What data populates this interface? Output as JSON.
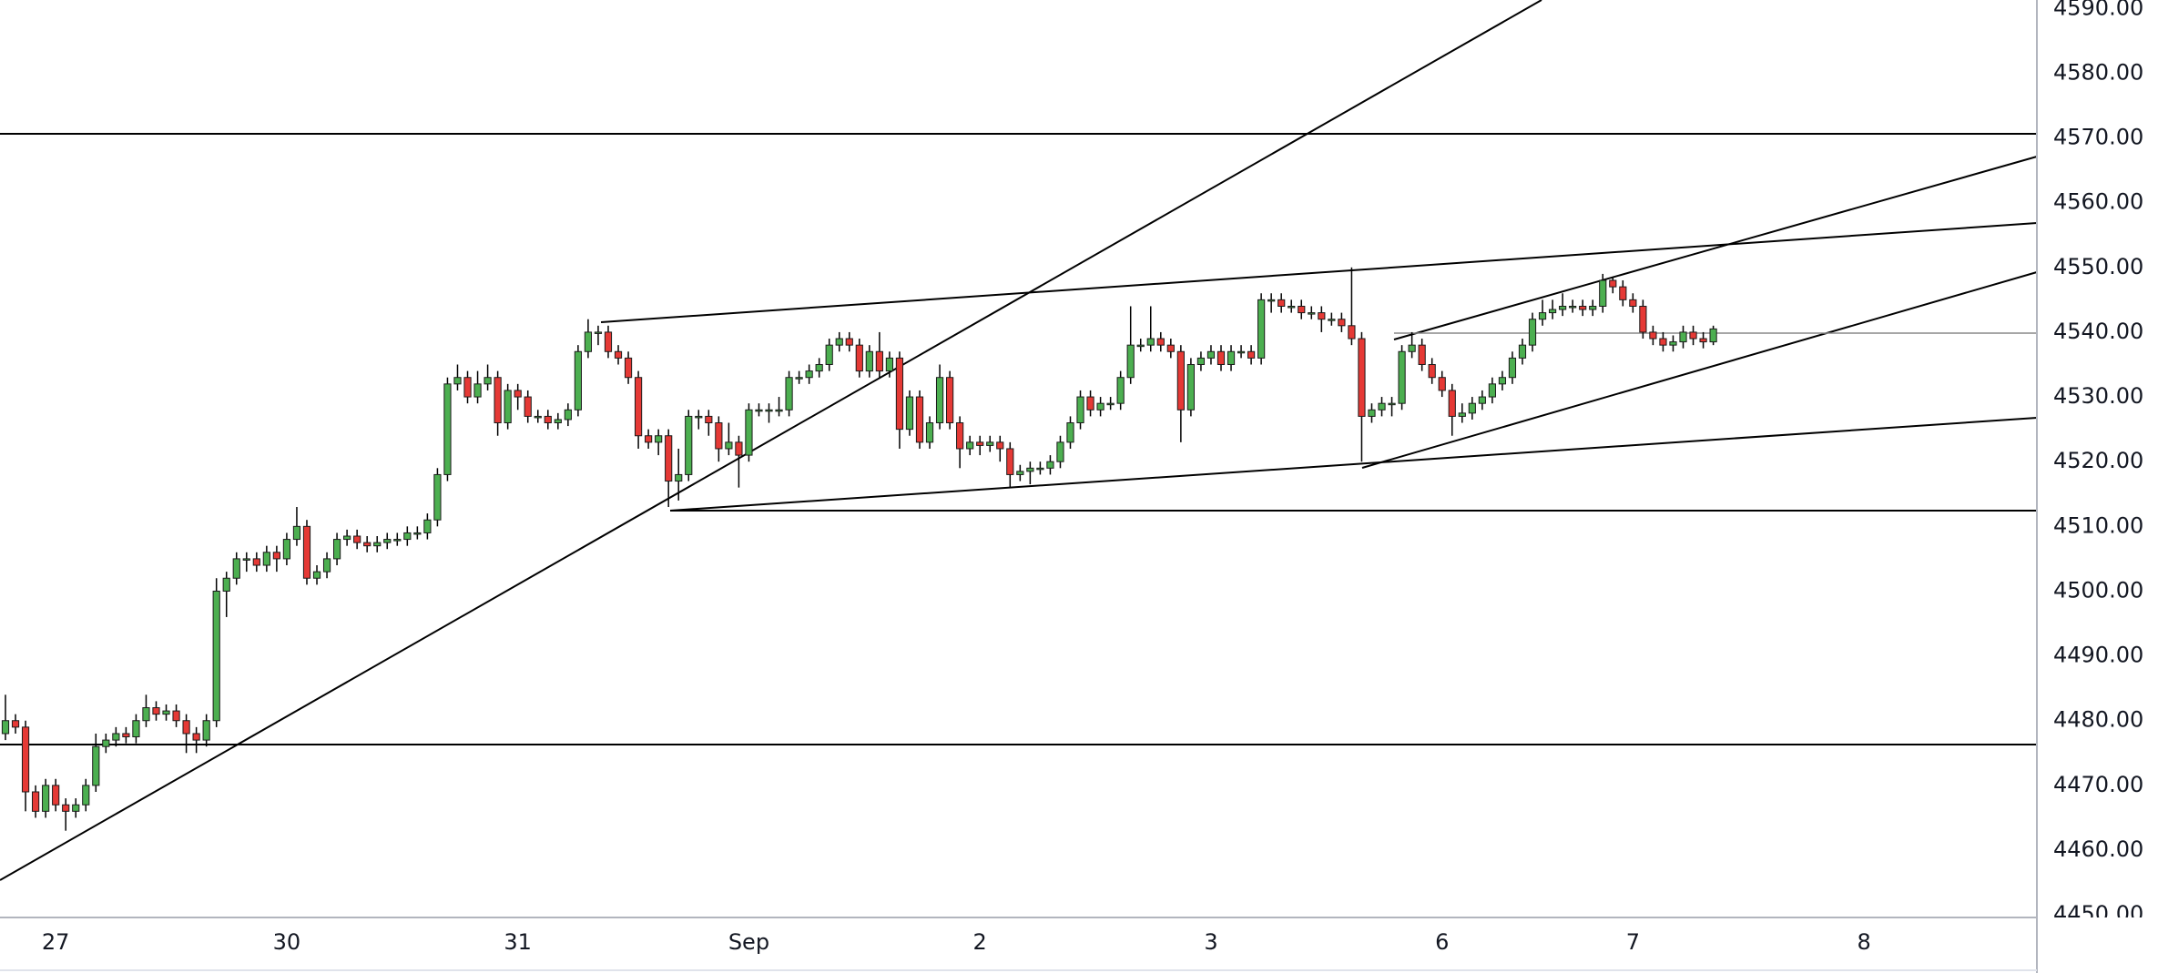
{
  "chart_data": {
    "type": "candlestick",
    "up_color": "#4caf50",
    "down_color": "#e53935",
    "ylim": [
      4449.6,
      4591.3
    ],
    "yticks": [
      {
        "value": 4450,
        "label": "4450.00"
      },
      {
        "value": 4460,
        "label": "4460.00"
      },
      {
        "value": 4470,
        "label": "4470.00"
      },
      {
        "value": 4480,
        "label": "4480.00"
      },
      {
        "value": 4490,
        "label": "4490.00"
      },
      {
        "value": 4500,
        "label": "4500.00"
      },
      {
        "value": 4510,
        "label": "4510.00"
      },
      {
        "value": 4520,
        "label": "4520.00"
      },
      {
        "value": 4530,
        "label": "4530.00"
      },
      {
        "value": 4540,
        "label": "4540.00"
      },
      {
        "value": 4550,
        "label": "4550.00"
      },
      {
        "value": 4560,
        "label": "4560.00"
      },
      {
        "value": 4570,
        "label": "4570.00"
      },
      {
        "value": 4580,
        "label": "4580.00"
      },
      {
        "value": 4590,
        "label": "4590.00"
      }
    ],
    "categories": [
      null,
      null,
      null,
      null,
      null,
      "27",
      null,
      null,
      null,
      null,
      null,
      null,
      null,
      null,
      null,
      null,
      null,
      null,
      null,
      null,
      null,
      null,
      null,
      null,
      null,
      null,
      null,
      null,
      "30",
      null,
      null,
      null,
      null,
      null,
      null,
      null,
      null,
      null,
      null,
      null,
      null,
      null,
      null,
      null,
      null,
      null,
      null,
      null,
      null,
      null,
      null,
      "31",
      null,
      null,
      null,
      null,
      null,
      null,
      null,
      null,
      null,
      null,
      null,
      null,
      null,
      null,
      null,
      null,
      null,
      null,
      null,
      null,
      null,
      null,
      "Sep",
      null,
      null,
      null,
      null,
      null,
      null,
      null,
      null,
      null,
      null,
      null,
      null,
      null,
      null,
      null,
      null,
      null,
      null,
      null,
      null,
      null,
      null,
      "2",
      null,
      null,
      null,
      null,
      null,
      null,
      null,
      null,
      null,
      null,
      null,
      null,
      null,
      null,
      null,
      null,
      null,
      null,
      null,
      null,
      null,
      null,
      "3",
      null,
      null,
      null,
      null,
      null,
      null,
      null,
      null,
      null,
      null,
      null,
      null,
      null,
      null,
      null,
      null,
      null,
      null,
      null,
      null,
      null,
      null,
      "6",
      null,
      null,
      null,
      null,
      null,
      null,
      null,
      null,
      null,
      null,
      null,
      null,
      null,
      null,
      null,
      null,
      null,
      null,
      "7",
      null,
      null,
      null,
      null,
      null,
      null,
      null,
      null,
      null,
      null,
      null,
      null,
      null,
      null,
      null,
      null,
      null,
      null,
      null,
      null,
      null,
      null,
      "8",
      null,
      null,
      null,
      null,
      null,
      null,
      null,
      null,
      null,
      null,
      null,
      null,
      null,
      null,
      null,
      null,
      null
    ],
    "open": [
      4478,
      4480,
      4479,
      4469,
      4466,
      4470,
      4467,
      4466,
      4467,
      4470,
      4476,
      4477,
      4478,
      4477.5,
      4480,
      4482,
      4481,
      4481.5,
      4480,
      4478,
      4477,
      4480,
      4500,
      4502,
      4505,
      4505,
      4504,
      4506,
      4505,
      4508,
      4510,
      4502,
      4503,
      4505,
      4508,
      4508.5,
      4507.5,
      4507,
      4507.5,
      4508,
      4508,
      4509,
      4509,
      4511,
      4518,
      4532,
      4533,
      4530,
      4532,
      4533,
      4526,
      4531,
      4530,
      4527,
      4527,
      4526,
      4526.5,
      4528,
      4537,
      4540,
      4540,
      4537,
      4536,
      4533,
      4524,
      4523,
      4524,
      4517,
      4518,
      4527,
      4527,
      4526,
      4522,
      4523,
      4521,
      4528,
      4528,
      4528,
      4528,
      4533,
      4533,
      4534,
      4535,
      4538,
      4539,
      4538,
      4534,
      4537,
      4534,
      4536,
      4525,
      4530,
      4523,
      4526,
      4533,
      4526,
      4522,
      4523,
      4522.5,
      4523,
      4522,
      4518,
      4518.5,
      4519,
      4519,
      4520,
      4523,
      4526,
      4530,
      4528,
      4529,
      4529,
      4533,
      4538,
      4538,
      4539,
      4538,
      4537,
      4528,
      4535,
      4536,
      4537,
      4535,
      4537,
      4537,
      4536,
      4545,
      4545,
      4544,
      4544,
      4543,
      4543,
      4542,
      4542,
      4541,
      4539,
      4527,
      4528,
      4529,
      4529,
      4537,
      4538,
      4535,
      4533,
      4531,
      4527,
      4527.5,
      4529,
      4530,
      4532,
      4533,
      4536,
      4538,
      4542,
      4543,
      4543.5,
      4544,
      4544,
      4543.5,
      4544,
      4548,
      4547,
      4545,
      4544,
      4540,
      4539,
      4538,
      4538.5,
      4540,
      4539,
      4538.5,
      null,
      null,
      null,
      null,
      null,
      null,
      null,
      null,
      null,
      null,
      null,
      null,
      null,
      null,
      null,
      null,
      null,
      null,
      null,
      null,
      null,
      null,
      null,
      null,
      null,
      null,
      null,
      null,
      null,
      null,
      null,
      null
    ],
    "high": [
      4484,
      4481,
      4480,
      4470,
      4471,
      4471,
      4468,
      4468,
      4471,
      4478,
      4478,
      4479,
      4479,
      4481,
      4484,
      4483,
      4482.5,
      4482.5,
      4481,
      4479,
      4481,
      4502,
      4503,
      4506,
      4506,
      4506,
      4507,
      4507,
      4509,
      4513,
      4511,
      4504,
      4506,
      4509,
      4509.5,
      4509.5,
      4508.5,
      4508.5,
      4509,
      4509,
      4510,
      4510,
      4512,
      4519,
      4533,
      4535,
      4534,
      4534,
      4535,
      4534,
      4532,
      4532,
      4531,
      4528,
      4528,
      4527.5,
      4529,
      4538,
      4542,
      4541,
      4541,
      4538,
      4537,
      4534,
      4525,
      4525,
      4525,
      4522,
      4528,
      4528,
      4528,
      4527,
      4526,
      4524,
      4529,
      4529,
      4529,
      4530,
      4534,
      4534,
      4535,
      4536,
      4539,
      4540,
      4540,
      4539,
      4538,
      4540,
      4537,
      4537,
      4531,
      4531,
      4527,
      4535,
      4534,
      4527,
      4524,
      4524,
      4524,
      4524,
      4523,
      4519.5,
      4520,
      4520,
      4521,
      4524,
      4527,
      4531,
      4531,
      4530,
      4530,
      4534,
      4544,
      4539,
      4544,
      4540,
      4539,
      4538,
      4536,
      4537,
      4538,
      4538,
      4538,
      4538,
      4538,
      4546,
      4546,
      4546,
      4545,
      4545,
      4544,
      4544,
      4543,
      4543,
      4550,
      4540,
      4529,
      4530,
      4530,
      4538,
      4540,
      4539,
      4536,
      4534,
      4532,
      4529,
      4530,
      4531,
      4533,
      4534,
      4537,
      4539,
      4543,
      4545,
      4545,
      4546,
      4545,
      4545,
      4545,
      4549,
      4548.5,
      4548,
      4546,
      4545,
      4541,
      4540,
      4539.5,
      4541,
      4541,
      4540,
      4541,
      null,
      null,
      null,
      null,
      null,
      null,
      null,
      null,
      null,
      null,
      null,
      null,
      null,
      null,
      null,
      null,
      null,
      null,
      null,
      null,
      null,
      null,
      null,
      null,
      null,
      null,
      null,
      null,
      null,
      null,
      null,
      null
    ],
    "low": [
      4477,
      4478,
      4466,
      4465,
      4465,
      4466,
      4463,
      4465,
      4466,
      4469,
      4475,
      4476,
      4476.5,
      4476.5,
      4479,
      4480,
      4480,
      4479,
      4475,
      4475,
      4476,
      4479,
      4496,
      4501,
      4503,
      4503,
      4503,
      4503,
      4504,
      4507,
      4501,
      4501,
      4502,
      4504,
      4507,
      4506.5,
      4506,
      4506,
      4506.5,
      4507,
      4507,
      4508,
      4508,
      4510,
      4517,
      4531,
      4529,
      4529,
      4531,
      4524,
      4525,
      4528,
      4526,
      4526,
      4525,
      4525,
      4525.5,
      4527,
      4536,
      4538,
      4536,
      4535,
      4532,
      4522,
      4522,
      4521,
      4513,
      4514,
      4517,
      4525,
      4524,
      4520,
      4521,
      4516,
      4520,
      4527,
      4526,
      4527,
      4527,
      4532,
      4532,
      4533,
      4534,
      4537,
      4537,
      4533,
      4533,
      4533,
      4533,
      4522,
      4524,
      4522,
      4522,
      4525,
      4525,
      4519,
      4521,
      4521,
      4521.5,
      4520,
      4516,
      4517,
      4516.5,
      4518,
      4518,
      4519,
      4522,
      4525,
      4527,
      4527,
      4528,
      4528,
      4532,
      4537,
      4537,
      4537,
      4536,
      4523,
      4527,
      4534,
      4535,
      4534,
      4534,
      4536,
      4535,
      4535,
      4543,
      4543,
      4543,
      4542,
      4542,
      4540,
      4541,
      4540,
      4538,
      4520,
      4526,
      4527,
      4527,
      4528,
      4536,
      4534,
      4532,
      4530,
      4524,
      4526,
      4526.5,
      4528,
      4529,
      4531,
      4532,
      4535,
      4537,
      4541,
      4542,
      4542.5,
      4543,
      4542.5,
      4542.5,
      4543,
      4546,
      4544,
      4543,
      4539,
      4538,
      4537,
      4537,
      4537.5,
      4538,
      4537.5,
      4538,
      null,
      null,
      null,
      null,
      null,
      null,
      null,
      null,
      null,
      null,
      null,
      null,
      null,
      null,
      null,
      null,
      null,
      null,
      null,
      null,
      null,
      null,
      null,
      null,
      null,
      null,
      null,
      null,
      null,
      null,
      null,
      null
    ],
    "close": [
      4480,
      4479,
      4469,
      4466,
      4470,
      4467,
      4466,
      4467,
      4470,
      4476,
      4477,
      4478,
      4477.5,
      4480,
      4482,
      4481,
      4481.5,
      4480,
      4478,
      4477,
      4480,
      4500,
      4502,
      4505,
      4505,
      4504,
      4506,
      4505,
      4508,
      4510,
      4502,
      4503,
      4505,
      4508,
      4508.5,
      4507.5,
      4507,
      4507.5,
      4508,
      4508,
      4509,
      4509,
      4511,
      4518,
      4532,
      4533,
      4530,
      4532,
      4533,
      4526,
      4531,
      4530,
      4527,
      4527,
      4526,
      4526.5,
      4528,
      4537,
      4540,
      4540,
      4537,
      4536,
      4533,
      4524,
      4523,
      4524,
      4517,
      4518,
      4527,
      4527,
      4526,
      4522,
      4523,
      4521,
      4528,
      4528,
      4528,
      4528,
      4533,
      4533,
      4534,
      4535,
      4538,
      4539,
      4538,
      4534,
      4537,
      4534,
      4536,
      4525,
      4530,
      4523,
      4526,
      4533,
      4526,
      4522,
      4523,
      4522.5,
      4523,
      4522,
      4518,
      4518.5,
      4519,
      4519,
      4520,
      4523,
      4526,
      4530,
      4528,
      4529,
      4529,
      4533,
      4538,
      4538,
      4539,
      4538,
      4537,
      4528,
      4535,
      4536,
      4537,
      4535,
      4537,
      4537,
      4536,
      4545,
      4545,
      4544,
      4544,
      4543,
      4543,
      4542,
      4542,
      4541,
      4539,
      4527,
      4528,
      4529,
      4529,
      4537,
      4538,
      4535,
      4533,
      4531,
      4527,
      4527.5,
      4529,
      4530,
      4532,
      4533,
      4536,
      4538,
      4542,
      4543,
      4543.5,
      4544,
      4544,
      4543.5,
      4544,
      4548,
      4547,
      4545,
      4544,
      4540,
      4539,
      4538,
      4538.5,
      4540,
      4539,
      4538.5,
      4540.5,
      null,
      null,
      null,
      null,
      null,
      null,
      null,
      null,
      null,
      null,
      null,
      null,
      null,
      null,
      null,
      null,
      null,
      null,
      null,
      null,
      null,
      null,
      null,
      null,
      null,
      null,
      null,
      null,
      null,
      null,
      null,
      null
    ]
  }
}
